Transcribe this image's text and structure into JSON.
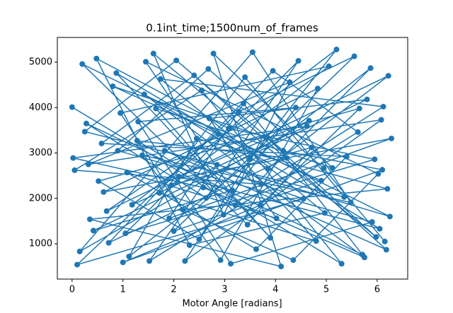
{
  "chart_data": {
    "type": "line",
    "title": "0.1int_time;1500num_of_frames",
    "x_label": "Motor Angle [radians]",
    "xlim": [
      -0.29,
      6.6
    ],
    "ylim": [
      222,
      5545
    ],
    "xticks": [
      0,
      1,
      2,
      3,
      4,
      5,
      6
    ],
    "yticks": [
      1000,
      2000,
      3000,
      4000,
      5000
    ],
    "grid": false,
    "series": [
      {
        "color": "#1f77b4",
        "x": [
          0.0,
          3.21,
          5.87,
          1.12,
          2.45,
          6.2,
          0.35,
          4.11,
          2.78,
          5.12,
          1.65,
          3.9,
          0.87,
          6.05,
          2.1,
          4.66,
          0.15,
          3.55,
          5.48,
          1.38,
          2.92,
          4.83,
          0.62,
          6.28,
          1.91,
          3.37,
          5.71,
          0.28,
          2.64,
          4.45,
          1.05,
          5.95,
          3.08,
          0.48,
          2.31,
          4.97,
          1.74,
          6.12,
          3.72,
          0.05,
          2.55,
          5.3,
          1.28,
          4.22,
          0.72,
          3.95,
          5.62,
          1.52,
          2.85,
          6.25,
          0.2,
          3.45,
          4.71,
          1.95,
          5.05,
          0.95,
          2.18,
          4.35,
          6.02,
          1.45,
          3.15,
          0.42,
          5.8,
          2.7,
          4.02,
          1.08,
          3.62,
          5.4,
          0.58,
          2.4,
          6.18,
          1.82,
          4.55,
          0.1,
          3.28,
          5.55,
          2.0,
          4.9,
          0.8,
          3.82,
          5.98,
          1.6,
          2.98,
          4.28,
          0.32,
          6.08,
          2.22,
          3.5,
          5.2,
          1.18,
          4.62,
          0.02,
          2.58,
          5.75,
          1.42,
          3.85,
          6.22,
          0.68,
          2.88,
          4.8,
          1.72,
          3.4,
          5.35,
          0.25,
          2.05,
          4.15,
          6.1,
          1.0,
          3.7,
          5.65,
          0.52,
          2.5,
          4.4,
          1.3,
          3.12,
          5.9,
          0.9,
          2.68,
          4.95,
          6.15
        ],
        "values": [
          4010,
          1850,
          4870,
          720,
          3320,
          2210,
          1540,
          500,
          5190,
          2670,
          3980,
          1130,
          4760,
          1330,
          2480,
          3710,
          830,
          5220,
          1910,
          2950,
          640,
          4420,
          2140,
          3320,
          1560,
          4090,
          760,
          3650,
          2010,
          5030,
          1230,
          2860,
          3540,
          5080,
          970,
          1680,
          4630,
          4020,
          2310,
          2620,
          4380,
          560,
          3270,
          2890,
          1020,
          4810,
          3460,
          620,
          2740,
          1600,
          4960,
          1420,
          3120,
          2290,
          4910,
          3880,
          1750,
          640,
          2540,
          5010,
          2180,
          1290,
          4180,
          3760,
          1560,
          2570,
          880,
          2920,
          3210,
          4710,
          870,
          3050,
          1990,
          540,
          3910,
          5130,
          1280,
          2390,
          4470,
          3340,
          1150,
          5190,
          1640,
          4560,
          2750,
          3730,
          620,
          2870,
          5280,
          1860,
          3590,
          2890,
          2240,
          700,
          4290,
          2660,
          4700,
          1720,
          3420,
          1060,
          2120,
          4670,
          2030,
          3470,
          5040,
          3050,
          2630,
          590,
          1850,
          3980,
          2380,
          1100,
          4000,
          3690,
          560,
          1480,
          3050,
          4850,
          2660,
          1050
        ]
      }
    ]
  }
}
